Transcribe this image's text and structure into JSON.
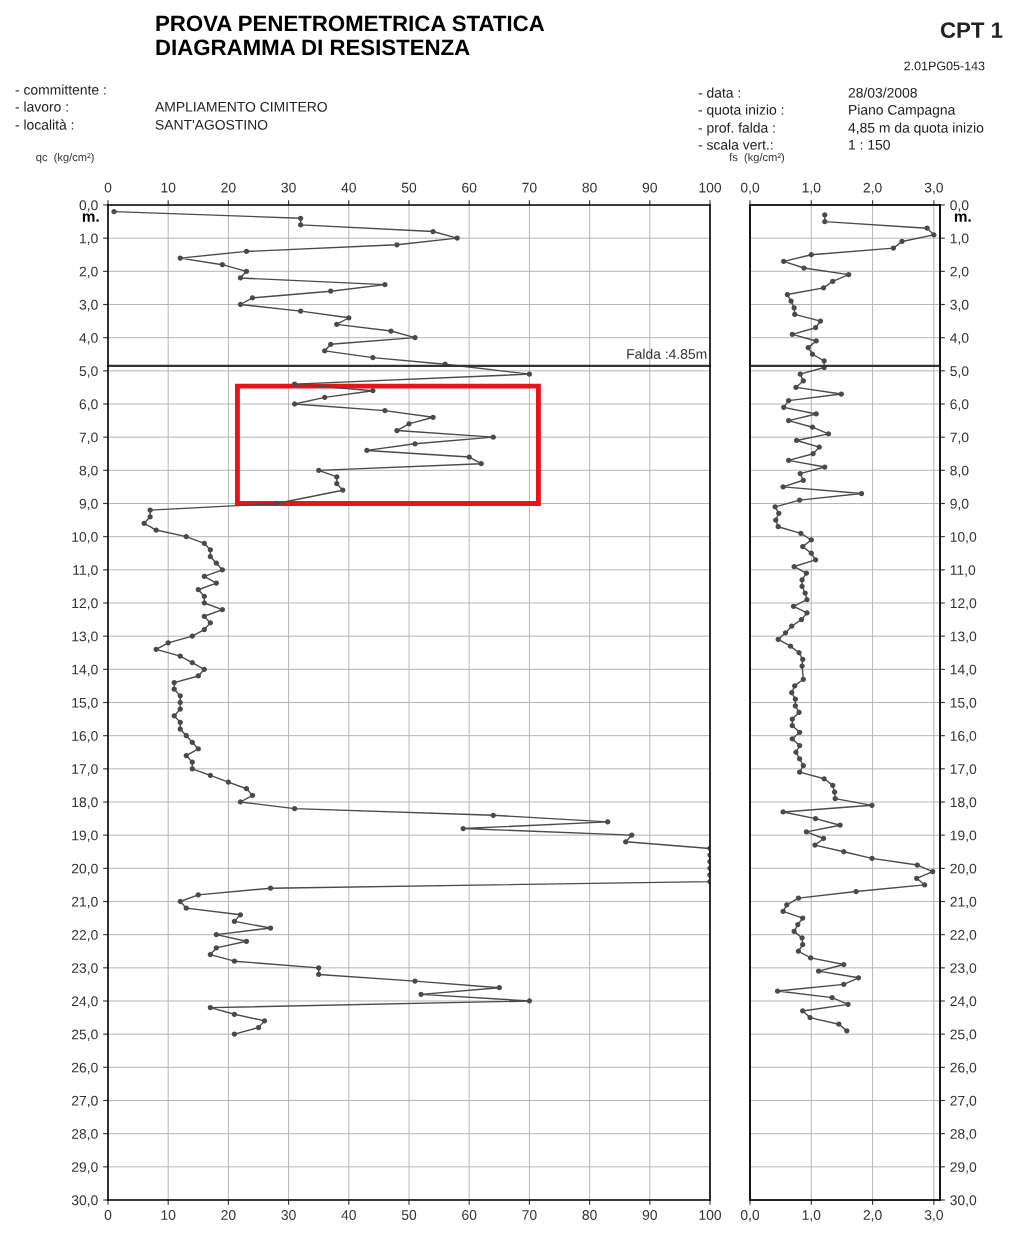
{
  "chart_data": [
    {
      "type": "line",
      "title": "PROVA PENETROMETRICA STATICA\nDIAGRAMMA DI RESISTENZA",
      "xlabel": "qc  (kg/cm²)",
      "ylabel": "m.",
      "annotations": [
        "CPT 1",
        "2.01PG05-143",
        "- committente :",
        "- lavoro :",
        "AMPLIAMENTO CIMITERO",
        "- località :",
        "SANT'AGOSTINO",
        "- data :",
        "28/03/2008",
        "- quota inizio :",
        "Piano Campagna",
        "- prof. falda :",
        "4,85 m da quota inizio",
        "- scala vert.:",
        "1 : 150"
      ],
      "series": [
        {
          "color": "#4a4a4a",
          "x": [
            1,
            32,
            32,
            54,
            58,
            48,
            23,
            12,
            19,
            23,
            22,
            46,
            37,
            24,
            22,
            32,
            40,
            38,
            47,
            51,
            37,
            36,
            44,
            56,
            70,
            31,
            44,
            36,
            31,
            46,
            54,
            50,
            48,
            64,
            51,
            43,
            60,
            62,
            35,
            38,
            38,
            39,
            28,
            7,
            7,
            6,
            8,
            13,
            16,
            17,
            17,
            18,
            19,
            16,
            18,
            15,
            16,
            16,
            19,
            16,
            17,
            16,
            14,
            10,
            8,
            12,
            14,
            16,
            15,
            11,
            11,
            12,
            12,
            12,
            11,
            12,
            12,
            13,
            14,
            15,
            13,
            14,
            14,
            17,
            20,
            23,
            24,
            22,
            31,
            64,
            83,
            59,
            87,
            86,
            100,
            100,
            100,
            100,
            100,
            100,
            27,
            15,
            12,
            13,
            22,
            21,
            27,
            18,
            23,
            18,
            17,
            21,
            35,
            35,
            51,
            65,
            52,
            70,
            17,
            21,
            26,
            25,
            21
          ],
          "values": [
            0.2,
            0.4,
            0.6,
            0.8,
            1.0,
            1.2,
            1.4,
            1.6,
            1.8,
            2.0,
            2.2,
            2.4,
            2.6,
            2.8,
            3.0,
            3.2,
            3.4,
            3.6,
            3.8,
            4.0,
            4.2,
            4.4,
            4.6,
            4.8,
            5.1,
            5.4,
            5.6,
            5.8,
            6.0,
            6.2,
            6.4,
            6.6,
            6.8,
            7.0,
            7.2,
            7.4,
            7.6,
            7.8,
            8.0,
            8.2,
            8.4,
            8.6,
            9.0,
            9.2,
            9.4,
            9.6,
            9.8,
            10.0,
            10.2,
            10.4,
            10.6,
            10.8,
            11.0,
            11.2,
            11.4,
            11.6,
            11.8,
            12.0,
            12.2,
            12.4,
            12.6,
            12.8,
            13.0,
            13.2,
            13.4,
            13.6,
            13.8,
            14.0,
            14.2,
            14.4,
            14.6,
            14.8,
            15.0,
            15.2,
            15.4,
            15.6,
            15.8,
            16.0,
            16.2,
            16.4,
            16.6,
            16.8,
            17.0,
            17.2,
            17.4,
            17.6,
            17.8,
            18.0,
            18.2,
            18.4,
            18.6,
            18.8,
            19.0,
            19.2,
            19.4,
            19.6,
            19.8,
            20.0,
            20.2,
            20.4,
            20.6,
            20.8,
            21.0,
            21.2,
            21.4,
            21.6,
            21.8,
            22.0,
            22.2,
            22.4,
            22.6,
            22.8,
            23.0,
            23.2,
            23.4,
            23.6,
            23.8,
            24.0,
            24.2,
            24.4,
            24.6,
            24.8,
            25.0
          ]
        }
      ],
      "xlim": [
        0,
        100
      ],
      "xticks": [
        0,
        10,
        20,
        30,
        40,
        50,
        60,
        70,
        80,
        90,
        100
      ],
      "x2lim": [
        0,
        100
      ],
      "x2ticks": [
        0,
        10,
        20,
        30,
        40,
        50,
        60,
        70,
        80,
        90,
        100
      ],
      "ylim": [
        30,
        0
      ],
      "yticks": [
        {
          "value": 0,
          "label": "0,0"
        },
        {
          "value": 1,
          "label": "1,0"
        },
        {
          "value": 2,
          "label": "2,0"
        },
        {
          "value": 3,
          "label": "3,0"
        },
        {
          "value": 4,
          "label": "4,0"
        },
        {
          "value": 5,
          "label": "5,0"
        },
        {
          "value": 6,
          "label": "6,0"
        },
        {
          "value": 7,
          "label": "7,0"
        },
        {
          "value": 8,
          "label": "8,0"
        },
        {
          "value": 9,
          "label": "9,0"
        },
        {
          "value": 10,
          "label": "10,0"
        },
        {
          "value": 11,
          "label": "11,0"
        },
        {
          "value": 12,
          "label": "12,0"
        },
        {
          "value": 13,
          "label": "13,0"
        },
        {
          "value": 14,
          "label": "14,0"
        },
        {
          "value": 15,
          "label": "15,0"
        },
        {
          "value": 16,
          "label": "16,0"
        },
        {
          "value": 17,
          "label": "17,0"
        },
        {
          "value": 18,
          "label": "18,0"
        },
        {
          "value": 19,
          "label": "19,0"
        },
        {
          "value": 20,
          "label": "20,0"
        },
        {
          "value": 21,
          "label": "21,0"
        },
        {
          "value": 22,
          "label": "22,0"
        },
        {
          "value": 23,
          "label": "23,0"
        },
        {
          "value": 24,
          "label": "24,0"
        },
        {
          "value": 25,
          "label": "25,0"
        },
        {
          "value": 26,
          "label": "26,0"
        },
        {
          "value": 27,
          "label": "27,0"
        },
        {
          "value": 28,
          "label": "28,0"
        },
        {
          "value": 29,
          "label": "29,0"
        },
        {
          "value": 30,
          "label": "30,0"
        }
      ],
      "ref_lines": [
        {
          "axis": "y",
          "value": 4.85,
          "label": "Falda :4.85m",
          "color": "#333333"
        }
      ],
      "grid": true,
      "marker": "circle",
      "line_style": "solid"
    },
    {
      "type": "line",
      "xlabel": "fs  (kg/cm²)",
      "y2label": "m.",
      "series": [
        {
          "color": "#4a4a4a",
          "axis": "y2",
          "x": [
            1.22,
            1.22,
            2.89,
            3.0,
            2.48,
            2.34,
            1.0,
            0.55,
            0.88,
            1.61,
            1.35,
            1.2,
            0.61,
            0.67,
            0.72,
            0.73,
            1.15,
            1.07,
            0.69,
            1.08,
            0.95,
            1.02,
            1.21,
            1.21,
            0.82,
            0.87,
            0.75,
            1.49,
            0.63,
            0.55,
            1.08,
            0.63,
            1.02,
            1.28,
            0.76,
            1.13,
            1.03,
            0.63,
            1.22,
            0.82,
            0.87,
            0.54,
            1.82,
            0.81,
            0.41,
            0.47,
            0.42,
            0.46,
            0.83,
            1.0,
            0.86,
            1.0,
            1.07,
            0.72,
            0.92,
            0.85,
            0.85,
            0.9,
            0.93,
            0.71,
            0.93,
            0.84,
            0.68,
            0.58,
            0.46,
            0.66,
            0.8,
            0.86,
            0.85,
            0.87,
            0.73,
            0.68,
            0.74,
            0.74,
            0.8,
            0.69,
            0.69,
            0.81,
            0.69,
            0.81,
            0.75,
            0.81,
            0.87,
            0.81,
            1.21,
            1.35,
            1.38,
            1.39,
            1.99,
            0.54,
            1.07,
            1.47,
            0.92,
            1.2,
            1.06,
            1.53,
            1.99,
            2.73,
            2.98,
            2.72,
            2.85,
            1.73,
            0.79,
            0.6,
            0.54,
            0.86,
            0.78,
            0.72,
            0.85,
            0.86,
            0.79,
            0.99,
            1.53,
            1.12,
            1.77,
            1.53,
            0.45,
            1.34,
            1.6,
            0.86,
            0.98,
            1.45,
            1.58
          ],
          "values": [
            0.3,
            0.5,
            0.7,
            0.9,
            1.1,
            1.3,
            1.5,
            1.7,
            1.9,
            2.1,
            2.3,
            2.5,
            2.7,
            2.9,
            3.1,
            3.3,
            3.5,
            3.7,
            3.9,
            4.1,
            4.3,
            4.5,
            4.7,
            4.9,
            5.1,
            5.3,
            5.5,
            5.7,
            5.9,
            6.1,
            6.3,
            6.5,
            6.7,
            6.9,
            7.1,
            7.3,
            7.5,
            7.7,
            7.9,
            8.1,
            8.3,
            8.5,
            8.7,
            8.9,
            9.1,
            9.3,
            9.5,
            9.7,
            9.9,
            10.1,
            10.3,
            10.5,
            10.7,
            10.9,
            11.1,
            11.3,
            11.5,
            11.7,
            11.9,
            12.1,
            12.3,
            12.5,
            12.7,
            12.9,
            13.1,
            13.3,
            13.5,
            13.7,
            13.9,
            14.3,
            14.5,
            14.7,
            14.9,
            15.1,
            15.3,
            15.5,
            15.7,
            15.9,
            16.1,
            16.3,
            16.5,
            16.7,
            16.9,
            17.1,
            17.3,
            17.5,
            17.7,
            17.9,
            18.1,
            18.3,
            18.5,
            18.7,
            18.9,
            19.1,
            19.3,
            19.5,
            19.7,
            19.9,
            20.1,
            20.3,
            20.5,
            20.7,
            20.9,
            21.1,
            21.3,
            21.5,
            21.7,
            21.9,
            22.1,
            22.3,
            22.5,
            22.7,
            22.9,
            23.1,
            23.3,
            23.5,
            23.7,
            23.9,
            24.1,
            24.3,
            24.5,
            24.7,
            24.9
          ]
        }
      ],
      "xlim": [
        0,
        3.1
      ],
      "xticks": [
        {
          "value": 0,
          "label": "0,0"
        },
        {
          "value": 1,
          "label": "1,0"
        },
        {
          "value": 2,
          "label": "2,0"
        },
        {
          "value": 3,
          "label": "3,0"
        }
      ],
      "x2lim": [
        0,
        3.1
      ],
      "x2ticks": [
        {
          "value": 0,
          "label": "0,0"
        },
        {
          "value": 1,
          "label": "1,0"
        },
        {
          "value": 2,
          "label": "2,0"
        },
        {
          "value": 3,
          "label": "3,0"
        }
      ],
      "y2lim": [
        30,
        0
      ],
      "y2ticks": [
        {
          "value": 0,
          "label": "0,0"
        },
        {
          "value": 1,
          "label": "1,0"
        },
        {
          "value": 2,
          "label": "2,0"
        },
        {
          "value": 3,
          "label": "3,0"
        },
        {
          "value": 4,
          "label": "4,0"
        },
        {
          "value": 5,
          "label": "5,0"
        },
        {
          "value": 6,
          "label": "6,0"
        },
        {
          "value": 7,
          "label": "7,0"
        },
        {
          "value": 8,
          "label": "8,0"
        },
        {
          "value": 9,
          "label": "9,0"
        },
        {
          "value": 10,
          "label": "10,0"
        },
        {
          "value": 11,
          "label": "11,0"
        },
        {
          "value": 12,
          "label": "12,0"
        },
        {
          "value": 13,
          "label": "13,0"
        },
        {
          "value": 14,
          "label": "14,0"
        },
        {
          "value": 15,
          "label": "15,0"
        },
        {
          "value": 16,
          "label": "16,0"
        },
        {
          "value": 17,
          "label": "17,0"
        },
        {
          "value": 18,
          "label": "18,0"
        },
        {
          "value": 19,
          "label": "19,0"
        },
        {
          "value": 20,
          "label": "20,0"
        },
        {
          "value": 21,
          "label": "21,0"
        },
        {
          "value": 22,
          "label": "22,0"
        },
        {
          "value": 23,
          "label": "23,0"
        },
        {
          "value": 24,
          "label": "24,0"
        },
        {
          "value": 25,
          "label": "25,0"
        },
        {
          "value": 26,
          "label": "26,0"
        },
        {
          "value": 27,
          "label": "27,0"
        },
        {
          "value": 28,
          "label": "28,0"
        },
        {
          "value": 29,
          "label": "29,0"
        },
        {
          "value": 30,
          "label": "30,0"
        }
      ],
      "ref_lines": [
        {
          "axis": "y2",
          "value": 4.85,
          "color": "#333333"
        }
      ],
      "grid": true,
      "marker": "circle",
      "line_style": "solid"
    }
  ]
}
